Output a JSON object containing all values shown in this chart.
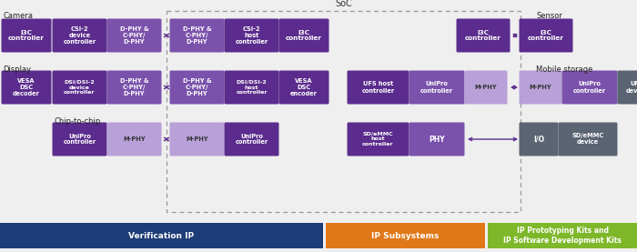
{
  "bg_color": "#efefef",
  "dark_purple": "#5b2c8d",
  "mid_purple": "#7b52ab",
  "light_purple": "#b8a0d8",
  "dark_gray": "#5a6472",
  "banner_blue": "#1e3d78",
  "banner_orange": "#e07818",
  "banner_green": "#7eb82a",
  "white": "#ffffff",
  "dashed_color": "#aaaaaa",
  "arrow_color": "#5b2c8d",
  "label_color": "#222222",
  "soc_label": "SoC",
  "camera_label": "Camera",
  "display_label": "Display",
  "chip_label": "Chip-to-chip",
  "sensor_label": "Sensor",
  "mobile_label": "Mobile storage",
  "banner_texts": [
    "Verification IP",
    "IP Subsystems",
    "IP Prototyping Kits and\nIP Software Development Kits"
  ]
}
